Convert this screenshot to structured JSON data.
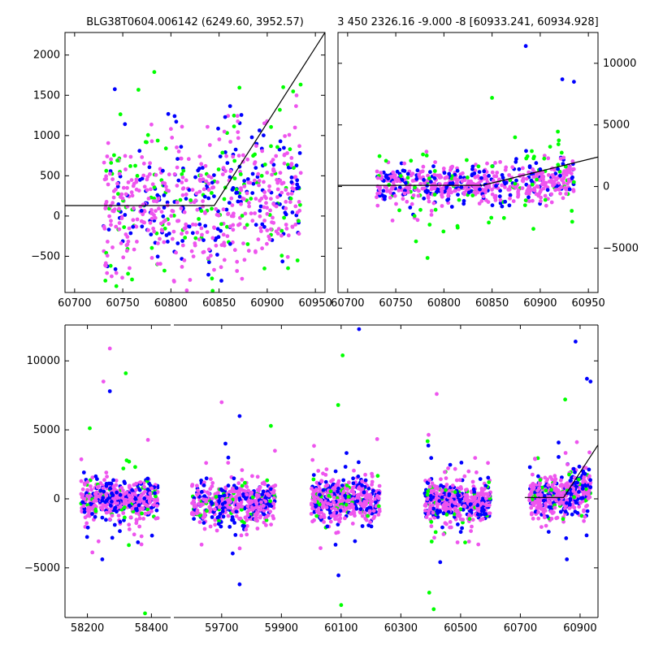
{
  "figure": {
    "top_left_title": "BLG38T0604.006142 (6249.60, 3952.57)",
    "top_right_title": "3 450 2326.16 -9.000 -8 [60933.241, 60934.928]"
  },
  "colors": {
    "blue": "#0000ff",
    "green": "#00ff00",
    "magenta": "#ee55ee",
    "model_line": "#000000"
  },
  "chart_data": [
    {
      "type": "scatter",
      "panel": "top-left",
      "title": "BLG38T0604.006142 (6249.60, 3952.57)",
      "xlim": [
        60690,
        60960
      ],
      "ylim": [
        -950,
        2280
      ],
      "xticks": [
        60700,
        60750,
        60800,
        60850,
        60900,
        60950
      ],
      "yticks": [
        -500,
        0,
        500,
        1000,
        1500,
        2000
      ],
      "ytick_side": "left",
      "series": [
        {
          "name": "blue",
          "color": "blue",
          "count": 180,
          "x_range": [
            60730,
            60935
          ],
          "center": 200,
          "spread": 450,
          "trend": 2.5,
          "seed": 11
        },
        {
          "name": "green",
          "color": "green",
          "count": 130,
          "x_range": [
            60730,
            60935
          ],
          "center": 250,
          "spread": 500,
          "trend": 2.5,
          "seed": 23
        },
        {
          "name": "magenta",
          "color": "magenta",
          "count": 420,
          "x_range": [
            60730,
            60935
          ],
          "center": 150,
          "spread": 450,
          "trend": 2.5,
          "seed": 37
        }
      ],
      "model_line": {
        "x": [
          60690,
          60845,
          60960
        ],
        "y": [
          130,
          130,
          2280
        ]
      }
    },
    {
      "type": "scatter",
      "panel": "top-right",
      "title": "3 450 2326.16 -9.000 -8 [60933.241, 60934.928]",
      "xlim": [
        60690,
        60960
      ],
      "ylim": [
        -8600,
        12500
      ],
      "xticks": [
        60700,
        60750,
        60800,
        60850,
        60900,
        60950
      ],
      "yticks": [
        -5000,
        0,
        5000,
        10000
      ],
      "ytick_side": "right",
      "series": [
        {
          "name": "blue",
          "color": "blue",
          "count": 180,
          "x_range": [
            60730,
            60935
          ],
          "center": 100,
          "spread": 900,
          "trend": 6,
          "seed": 51
        },
        {
          "name": "green",
          "color": "green",
          "count": 80,
          "x_range": [
            60730,
            60935
          ],
          "center": 150,
          "spread": 1800,
          "trend": 6,
          "seed": 63
        },
        {
          "name": "magenta",
          "color": "magenta",
          "count": 420,
          "x_range": [
            60730,
            60935
          ],
          "center": 50,
          "spread": 800,
          "trend": 6,
          "seed": 77
        }
      ],
      "highlights": [
        {
          "x": 60885,
          "y": 11400,
          "color": "blue"
        },
        {
          "x": 60923,
          "y": 8700,
          "color": "blue"
        },
        {
          "x": 60935,
          "y": 8500,
          "color": "blue"
        },
        {
          "x": 60783,
          "y": -5800,
          "color": "green"
        },
        {
          "x": 60850,
          "y": 7200,
          "color": "green"
        }
      ],
      "model_line": {
        "x": [
          60675,
          60840,
          60960
        ],
        "y": [
          100,
          100,
          2400
        ]
      }
    },
    {
      "type": "scatter",
      "panel": "bottom",
      "broken_x_axis": true,
      "ylim": [
        -8600,
        12600
      ],
      "yticks": [
        -5000,
        0,
        5000,
        10000
      ],
      "xticks_segment1": [
        58200,
        58400
      ],
      "xticks_segment2": [
        59700,
        59900,
        60100,
        60300,
        60500,
        60700,
        60900
      ],
      "segments": [
        {
          "xlim": [
            58130,
            58460
          ]
        },
        {
          "xlim": [
            59540,
            60960
          ]
        }
      ],
      "seasons": [
        {
          "x_range": [
            58180,
            58420
          ],
          "center": 0,
          "spread": 700,
          "segment": 0,
          "seed": 101
        },
        {
          "x_range": [
            59600,
            59880
          ],
          "center": -300,
          "spread": 750,
          "segment": 1,
          "seed": 203
        },
        {
          "x_range": [
            60000,
            60230
          ],
          "center": 0,
          "spread": 750,
          "segment": 1,
          "seed": 307
        },
        {
          "x_range": [
            60380,
            60600
          ],
          "center": -200,
          "spread": 750,
          "segment": 1,
          "seed": 409
        },
        {
          "x_range": [
            60730,
            60935
          ],
          "center": 100,
          "spread": 700,
          "segment": 1,
          "seed": 503
        }
      ],
      "highlights": [
        {
          "x": 58270,
          "y": 10900,
          "color": "magenta"
        },
        {
          "x": 58250,
          "y": 8500,
          "color": "magenta"
        },
        {
          "x": 58320,
          "y": 9100,
          "color": "green"
        },
        {
          "x": 58270,
          "y": 7800,
          "color": "blue"
        },
        {
          "x": 58380,
          "y": -8300,
          "color": "green"
        },
        {
          "x": 60160,
          "y": 12300,
          "color": "blue"
        },
        {
          "x": 60105,
          "y": 10400,
          "color": "green"
        },
        {
          "x": 60090,
          "y": 6800,
          "color": "green"
        },
        {
          "x": 60100,
          "y": -7700,
          "color": "green"
        },
        {
          "x": 60410,
          "y": -8000,
          "color": "green"
        },
        {
          "x": 60420,
          "y": 7600,
          "color": "magenta"
        },
        {
          "x": 60395,
          "y": -6800,
          "color": "green"
        },
        {
          "x": 59700,
          "y": 7000,
          "color": "magenta"
        },
        {
          "x": 59760,
          "y": 6000,
          "color": "blue"
        },
        {
          "x": 59760,
          "y": -6200,
          "color": "blue"
        },
        {
          "x": 60885,
          "y": 11400,
          "color": "blue"
        },
        {
          "x": 60923,
          "y": 8700,
          "color": "blue"
        },
        {
          "x": 60935,
          "y": 8500,
          "color": "blue"
        },
        {
          "x": 60850,
          "y": 7200,
          "color": "green"
        }
      ],
      "model_line": {
        "x": [
          60715,
          60845,
          60960
        ],
        "y": [
          100,
          100,
          3900
        ]
      }
    }
  ]
}
